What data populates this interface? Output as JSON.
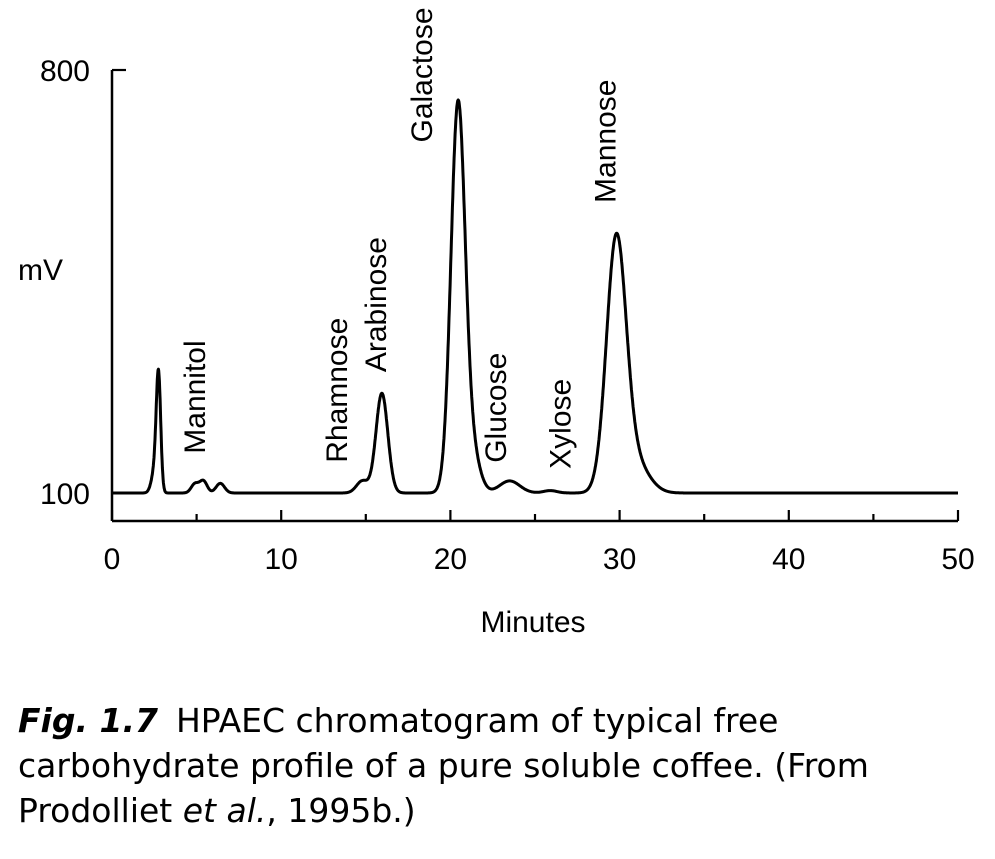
{
  "chart_data": {
    "type": "line",
    "title": "",
    "xlabel": "Minutes",
    "ylabel": "mV",
    "xlim": [
      0,
      50
    ],
    "ylim": [
      100,
      800
    ],
    "x_ticks": [
      0,
      10,
      20,
      30,
      40,
      50
    ],
    "y_ticks": [
      100,
      800
    ],
    "grid": false,
    "legend": "none",
    "baseline": 100,
    "peaks": [
      {
        "name": "",
        "t": 2.75,
        "h": 180,
        "w": 0.13
      },
      {
        "name": "",
        "t": 2.55,
        "h": 40,
        "w": 0.2
      },
      {
        "name": "Mannitol",
        "t": 4.9,
        "h": 15,
        "w": 0.22
      },
      {
        "name": "",
        "t": 5.4,
        "h": 20,
        "w": 0.22
      },
      {
        "name": "",
        "t": 6.4,
        "h": 16,
        "w": 0.25
      },
      {
        "name": "Rhamnose",
        "t": 14.8,
        "h": 20,
        "w": 0.35
      },
      {
        "name": "Arabinose",
        "t": 15.95,
        "h": 165,
        "w": 0.35
      },
      {
        "name": "Galactose",
        "t": 20.45,
        "h": 640,
        "w": 0.42
      },
      {
        "name": "",
        "t": 21.3,
        "h": 60,
        "w": 0.45
      },
      {
        "name": "Glucose",
        "t": 23.5,
        "h": 20,
        "w": 0.6
      },
      {
        "name": "Xylose",
        "t": 25.9,
        "h": 4,
        "w": 0.4
      },
      {
        "name": "Mannose",
        "t": 29.8,
        "h": 410,
        "w": 0.58
      },
      {
        "name": "",
        "t": 30.9,
        "h": 50,
        "w": 0.8
      }
    ],
    "annotations": [
      {
        "text": "Mannitol",
        "x": 5.5,
        "y": 165
      },
      {
        "text": "Rhamnose",
        "x": 13.9,
        "y": 150
      },
      {
        "text": "Arabinose",
        "x": 16.2,
        "y": 300
      },
      {
        "text": "Galactose",
        "x": 18.9,
        "y": 680
      },
      {
        "text": "Glucose",
        "x": 23.3,
        "y": 150
      },
      {
        "text": "Xylose",
        "x": 27.1,
        "y": 140
      },
      {
        "text": "Mannose",
        "x": 29.75,
        "y": 580
      }
    ],
    "color": "#000000"
  },
  "caption": {
    "fig_label": "Fig. 1.7",
    "text_a": "HPAEC chromatogram of typical free carbohydrate profile of a pure soluble coffee. (From Prodolliet ",
    "text_italic": "et al.",
    "text_b": ", 1995b.)"
  }
}
